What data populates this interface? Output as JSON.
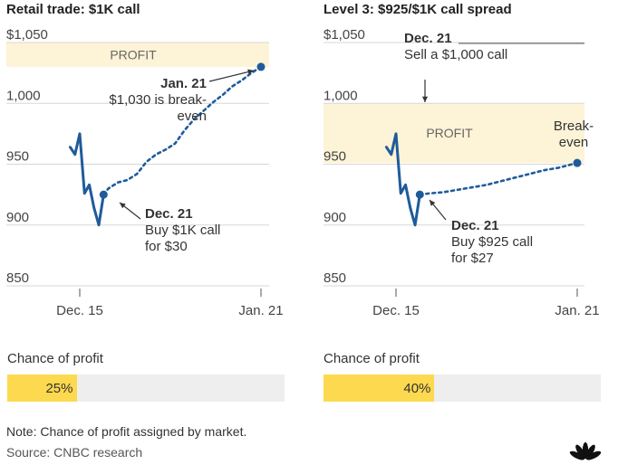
{
  "panels": [
    {
      "title": "Retail trade: $1K call",
      "probability_label": "Chance of profit",
      "probability": 0.25,
      "probability_text": "25%",
      "colors": {
        "line": "#1f5b9b",
        "profit_band": "#fdf3d6",
        "probability": "#fdd94f"
      }
    },
    {
      "title": "Level 3: $925/$1K call spread",
      "probability_label": "Chance of profit",
      "probability": 0.4,
      "probability_text": "40%",
      "colors": {
        "line": "#1f5b9b",
        "profit_band": "#fdf3d6",
        "probability": "#fdd94f"
      }
    }
  ],
  "chart_data": [
    {
      "type": "line",
      "title": "Retail trade: $1K call",
      "ylim": [
        850,
        1050
      ],
      "y_ticks": [
        1050,
        1000,
        950,
        900,
        850
      ],
      "y_tick_labels": [
        "$1,050",
        "1,000",
        "950",
        "900",
        "850"
      ],
      "x_ticks": [
        14,
        52
      ],
      "x_tick_labels": [
        "Dec. 15",
        "Jan. 21"
      ],
      "grid": true,
      "profit_band": {
        "label": "PROFIT",
        "from": 1030,
        "to": 1050
      },
      "series": [
        {
          "style": "solid",
          "x": [
            12,
            13,
            14,
            15,
            16,
            17,
            18,
            19
          ],
          "y": [
            964,
            958,
            975,
            926,
            933,
            914,
            900,
            925
          ]
        },
        {
          "style": "dotted",
          "x": [
            19,
            20,
            22,
            24,
            26,
            28,
            30,
            32,
            34,
            36,
            38,
            40,
            42,
            44,
            46,
            48,
            50,
            52
          ],
          "y": [
            925,
            930,
            935,
            937,
            942,
            952,
            958,
            962,
            967,
            978,
            987,
            994,
            1001,
            1007,
            1014,
            1019,
            1025,
            1030
          ]
        }
      ],
      "annotations": [
        {
          "x": 19,
          "y": 925,
          "lines": [
            "Dec. 21",
            "Buy $1K call",
            "for $30"
          ]
        },
        {
          "x": 52,
          "y": 1030,
          "lines": [
            "Jan. 21",
            "$1,030 is break-",
            "even"
          ]
        }
      ]
    },
    {
      "type": "line",
      "title": "Level 3: $925/$1K call spread",
      "ylim": [
        850,
        1050
      ],
      "y_ticks": [
        1050,
        1000,
        950,
        900,
        850
      ],
      "y_tick_labels": [
        "$1,050",
        "1,000",
        "950",
        "900",
        "850"
      ],
      "x_ticks": [
        14,
        52
      ],
      "x_tick_labels": [
        "Dec. 15",
        "Jan. 21"
      ],
      "grid": true,
      "profit_band": {
        "label": "PROFIT",
        "from": 951,
        "to": 1000
      },
      "series": [
        {
          "style": "solid",
          "x": [
            12,
            13,
            14,
            15,
            16,
            17,
            18,
            19
          ],
          "y": [
            964,
            958,
            975,
            926,
            933,
            914,
            900,
            925
          ]
        },
        {
          "style": "dotted",
          "x": [
            19,
            21,
            24,
            27,
            30,
            33,
            36,
            39,
            42,
            45,
            48,
            50,
            52
          ],
          "y": [
            925,
            926,
            927,
            929,
            931,
            933,
            936,
            939,
            942,
            945,
            947,
            949,
            951
          ]
        }
      ],
      "annotations": [
        {
          "x": 19,
          "y": 925,
          "lines": [
            "Dec. 21",
            "Buy $925 call",
            "for $27"
          ]
        },
        {
          "x": 19,
          "y": 1000,
          "lines": [
            "Dec. 21",
            "Sell a $1,000 call"
          ]
        },
        {
          "x": 52,
          "y": 951,
          "lines": [
            "Break-",
            "even"
          ]
        }
      ]
    }
  ],
  "footer": {
    "note": "Note: Chance of profit assigned by market.",
    "source": "Source: CNBC research"
  },
  "logo": {
    "name": "peacock-logo"
  }
}
